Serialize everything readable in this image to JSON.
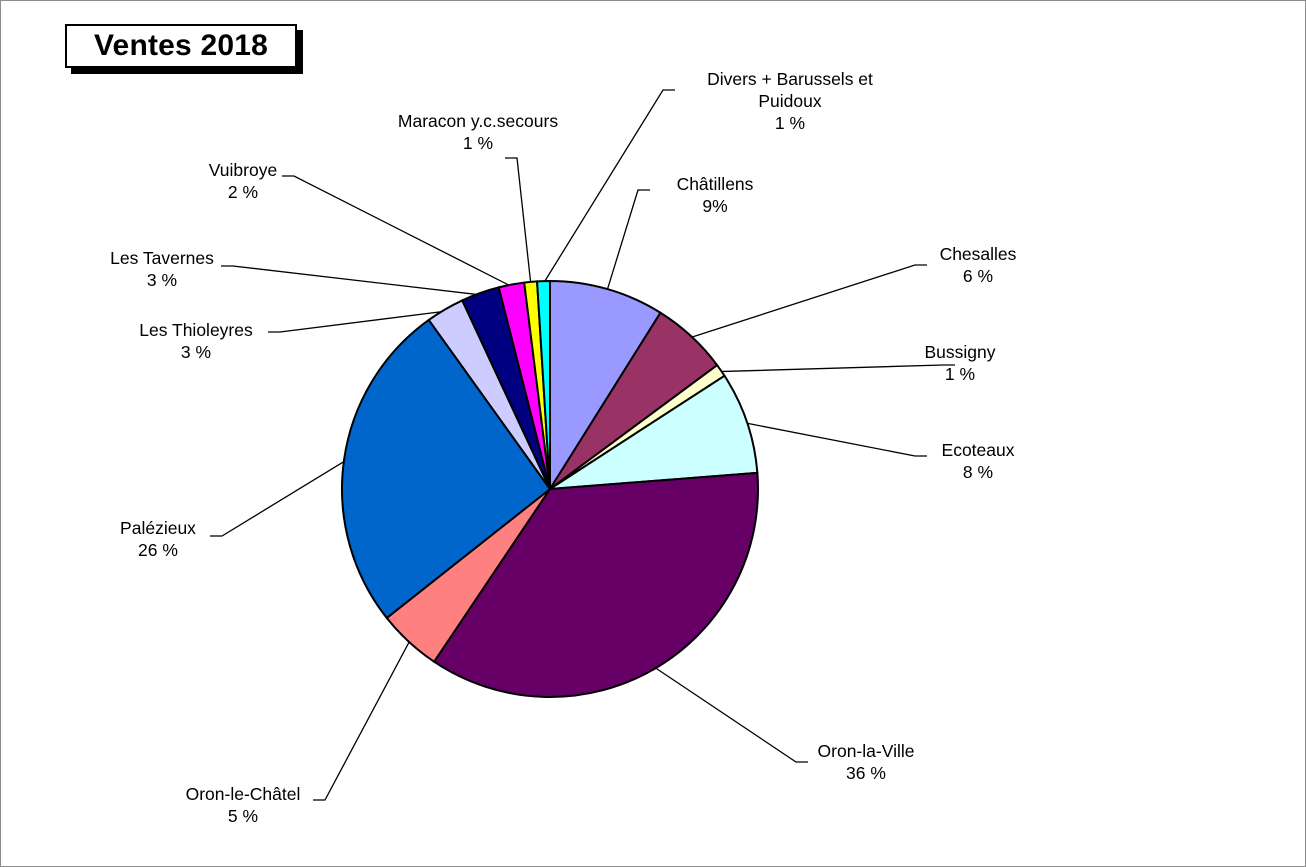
{
  "chart_data": {
    "type": "pie",
    "title": "Ventes 2018",
    "start_angle_deg": 0,
    "direction": "clockwise",
    "slices": [
      {
        "label": "Châtillens",
        "value": 9,
        "display": "9%",
        "color": "#9999FF"
      },
      {
        "label": "Chesalles",
        "value": 6,
        "display": "6 %",
        "color": "#993366"
      },
      {
        "label": "Bussigny",
        "value": 1,
        "display": "1 %",
        "color": "#FFFFCC"
      },
      {
        "label": "Ecoteaux",
        "value": 8,
        "display": "8 %",
        "color": "#CCFFFF"
      },
      {
        "label": "Oron-la-Ville",
        "value": 36,
        "display": "36 %",
        "color": "#660066"
      },
      {
        "label": "Oron-le-Châtel",
        "value": 5,
        "display": "5 %",
        "color": "#FF8080"
      },
      {
        "label": "Palézieux",
        "value": 26,
        "display": "26 %",
        "color": "#0066CC"
      },
      {
        "label": "Les Thioleyres",
        "value": 3,
        "display": "3 %",
        "color": "#CCCCFF"
      },
      {
        "label": "Les Tavernes",
        "value": 3,
        "display": "3 %",
        "color": "#000080"
      },
      {
        "label": "Vuibroye",
        "value": 2,
        "display": "2 %",
        "color": "#FF00FF"
      },
      {
        "label": "Maracon y.c.secours",
        "value": 1,
        "display": "1 %",
        "color": "#FFFF00"
      },
      {
        "label": "Divers + Barussels et Puidoux",
        "value": 1,
        "display": "1 %",
        "color": "#00FFFF"
      }
    ]
  }
}
